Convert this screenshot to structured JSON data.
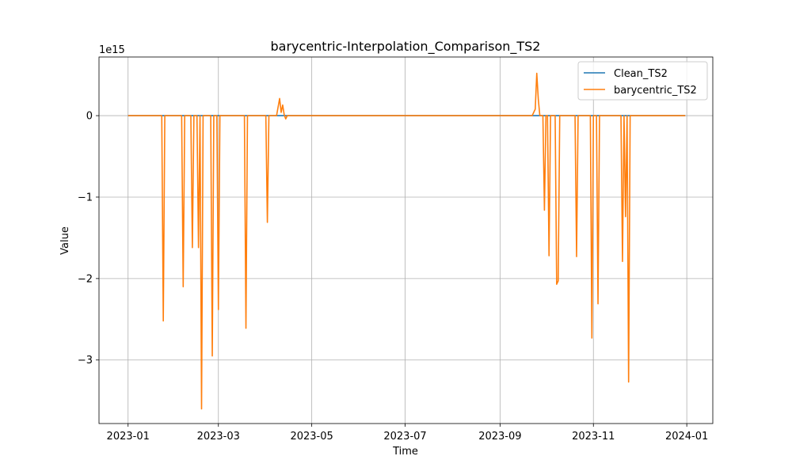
{
  "chart_data": {
    "type": "line",
    "title": "barycentric-Interpolation_Comparison_TS2",
    "xlabel": "Time",
    "ylabel": "Value",
    "y_offset_label": "1e15",
    "y_scale": 1000000000000000.0,
    "xlim": [
      "2022-12-13",
      "2024-01-18"
    ],
    "ylim": [
      -3.78,
      0.72
    ],
    "x_ticks": [
      {
        "date": "2023-01-01",
        "label": "2023-01"
      },
      {
        "date": "2023-03-01",
        "label": "2023-03"
      },
      {
        "date": "2023-05-01",
        "label": "2023-05"
      },
      {
        "date": "2023-07-01",
        "label": "2023-07"
      },
      {
        "date": "2023-09-01",
        "label": "2023-09"
      },
      {
        "date": "2023-11-01",
        "label": "2023-11"
      },
      {
        "date": "2024-01-01",
        "label": "2024-01"
      }
    ],
    "y_ticks": [
      {
        "value": 0,
        "label": "0"
      },
      {
        "value": -1,
        "label": "−1"
      },
      {
        "value": -2,
        "label": "−2"
      },
      {
        "value": -3,
        "label": "−3"
      }
    ],
    "grid": true,
    "legend_position": "top-right",
    "series": [
      {
        "name": "Clean_TS2",
        "color": "#1f77b4",
        "points": [
          [
            "2023-01-01",
            0
          ],
          [
            "2023-12-31",
            0
          ]
        ]
      },
      {
        "name": "barycentric_TS2",
        "color": "#ff7f0e",
        "points": [
          [
            "2023-01-01",
            0
          ],
          [
            "2023-01-23",
            0
          ],
          [
            "2023-01-24",
            -2.52
          ],
          [
            "2023-01-25",
            0
          ],
          [
            "2023-02-05",
            0
          ],
          [
            "2023-02-06",
            -2.1
          ],
          [
            "2023-02-07",
            0
          ],
          [
            "2023-02-11",
            0
          ],
          [
            "2023-02-12",
            -1.62
          ],
          [
            "2023-02-13",
            0
          ],
          [
            "2023-02-15",
            0
          ],
          [
            "2023-02-16",
            -1.62
          ],
          [
            "2023-02-17",
            0
          ],
          [
            "2023-02-18",
            -3.6
          ],
          [
            "2023-02-19",
            0
          ],
          [
            "2023-02-24",
            0
          ],
          [
            "2023-02-25",
            -2.95
          ],
          [
            "2023-02-26",
            0
          ],
          [
            "2023-02-28",
            0
          ],
          [
            "2023-03-01",
            -2.38
          ],
          [
            "2023-03-02",
            0
          ],
          [
            "2023-03-18",
            0
          ],
          [
            "2023-03-19",
            -2.61
          ],
          [
            "2023-03-20",
            0
          ],
          [
            "2023-04-01",
            0
          ],
          [
            "2023-04-02",
            -1.31
          ],
          [
            "2023-04-03",
            0
          ],
          [
            "2023-04-08",
            0
          ],
          [
            "2023-04-10",
            0.21
          ],
          [
            "2023-04-11",
            0.04
          ],
          [
            "2023-04-12",
            0.13
          ],
          [
            "2023-04-13",
            0.01
          ],
          [
            "2023-04-14",
            -0.04
          ],
          [
            "2023-04-15",
            0
          ],
          [
            "2023-09-22",
            0
          ],
          [
            "2023-09-24",
            0.08
          ],
          [
            "2023-09-25",
            0.52
          ],
          [
            "2023-09-26",
            0.2
          ],
          [
            "2023-09-27",
            0
          ],
          [
            "2023-09-29",
            0
          ],
          [
            "2023-09-30",
            -1.16
          ],
          [
            "2023-10-01",
            0
          ],
          [
            "2023-10-02",
            0
          ],
          [
            "2023-10-03",
            -1.72
          ],
          [
            "2023-10-04",
            0
          ],
          [
            "2023-10-07",
            0
          ],
          [
            "2023-10-08",
            -2.07
          ],
          [
            "2023-10-09",
            -2.03
          ],
          [
            "2023-10-10",
            0
          ],
          [
            "2023-10-20",
            0
          ],
          [
            "2023-10-21",
            -1.73
          ],
          [
            "2023-10-22",
            0
          ],
          [
            "2023-10-30",
            0
          ],
          [
            "2023-10-31",
            -2.73
          ],
          [
            "2023-11-01",
            0
          ],
          [
            "2023-11-03",
            0
          ],
          [
            "2023-11-04",
            -2.31
          ],
          [
            "2023-11-05",
            0
          ],
          [
            "2023-11-19",
            0
          ],
          [
            "2023-11-20",
            -1.79
          ],
          [
            "2023-11-21",
            0
          ],
          [
            "2023-11-22",
            -1.24
          ],
          [
            "2023-11-23",
            0
          ],
          [
            "2023-11-24",
            -3.27
          ],
          [
            "2023-11-25",
            0
          ],
          [
            "2023-12-31",
            0
          ]
        ]
      }
    ]
  }
}
